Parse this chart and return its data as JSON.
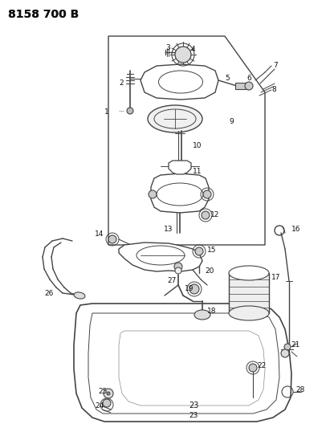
{
  "title": "8158 700 B",
  "bg_color": "#ffffff",
  "lc": "#444444",
  "figsize": [
    4.11,
    5.33
  ],
  "dpi": 100
}
